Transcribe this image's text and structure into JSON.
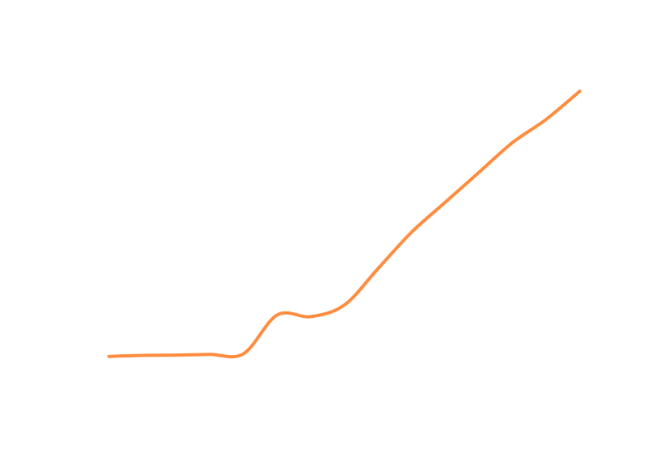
{
  "chart_data": {
    "type": "line",
    "x": [
      0,
      1,
      2,
      3,
      4,
      5,
      6,
      7,
      8,
      9,
      10,
      11,
      12,
      13,
      14
    ],
    "series": [
      {
        "values": [
          5,
          5.6,
          5.8,
          6.2,
          6.6,
          30,
          29,
          36,
          58,
          80,
          98,
          116,
          134,
          148,
          165
        ],
        "color": "#FF8C3F"
      }
    ],
    "xlim": [
      0,
      14
    ],
    "ylim": [
      0,
      165
    ],
    "grid": false,
    "legend": false,
    "axes_visible": false,
    "smooth": true
  }
}
